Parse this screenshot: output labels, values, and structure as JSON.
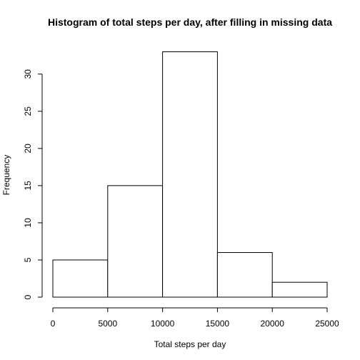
{
  "chart_data": {
    "type": "bar",
    "title": "Histogram of total steps per day, after filling in missing data",
    "xlabel": "Total steps per day",
    "ylabel": "Frequency",
    "bins": [
      {
        "from": 0,
        "to": 5000,
        "count": 5
      },
      {
        "from": 5000,
        "to": 10000,
        "count": 15
      },
      {
        "from": 10000,
        "to": 15000,
        "count": 33
      },
      {
        "from": 15000,
        "to": 20000,
        "count": 6
      },
      {
        "from": 20000,
        "to": 25000,
        "count": 2
      }
    ],
    "xlim": [
      0,
      25000
    ],
    "ylim": [
      0,
      33
    ],
    "x_ticks": [
      0,
      5000,
      10000,
      15000,
      20000,
      25000
    ],
    "y_ticks": [
      0,
      5,
      10,
      15,
      20,
      25,
      30
    ],
    "grid": false,
    "colors": {
      "bar_fill": "#ffffff",
      "bar_stroke": "#000000"
    }
  }
}
